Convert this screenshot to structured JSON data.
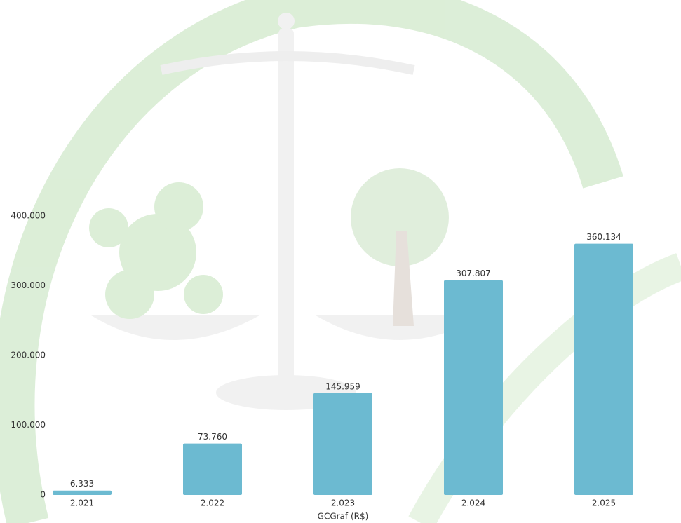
{
  "chart_data": {
    "type": "bar",
    "x_label": "GCGraf (R$)",
    "categories": [
      "2.021",
      "2.022",
      "2.023",
      "2.024",
      "2.025"
    ],
    "values": [
      6333,
      73760,
      145959,
      307807,
      360134
    ],
    "value_labels": [
      "6.333",
      "73.760",
      "145.959",
      "307.807",
      "360.134"
    ],
    "color": "#6cbad1",
    "ylim": [
      0,
      400000
    ],
    "yticks": [
      0,
      {
        "value": 100000,
        "label": "100.000"
      },
      {
        "value": 200000,
        "label": "200.000"
      },
      {
        "value": 300000,
        "label": "300.000"
      },
      {
        "value": 400000,
        "label": "400.000"
      }
    ],
    "grid": false
  }
}
